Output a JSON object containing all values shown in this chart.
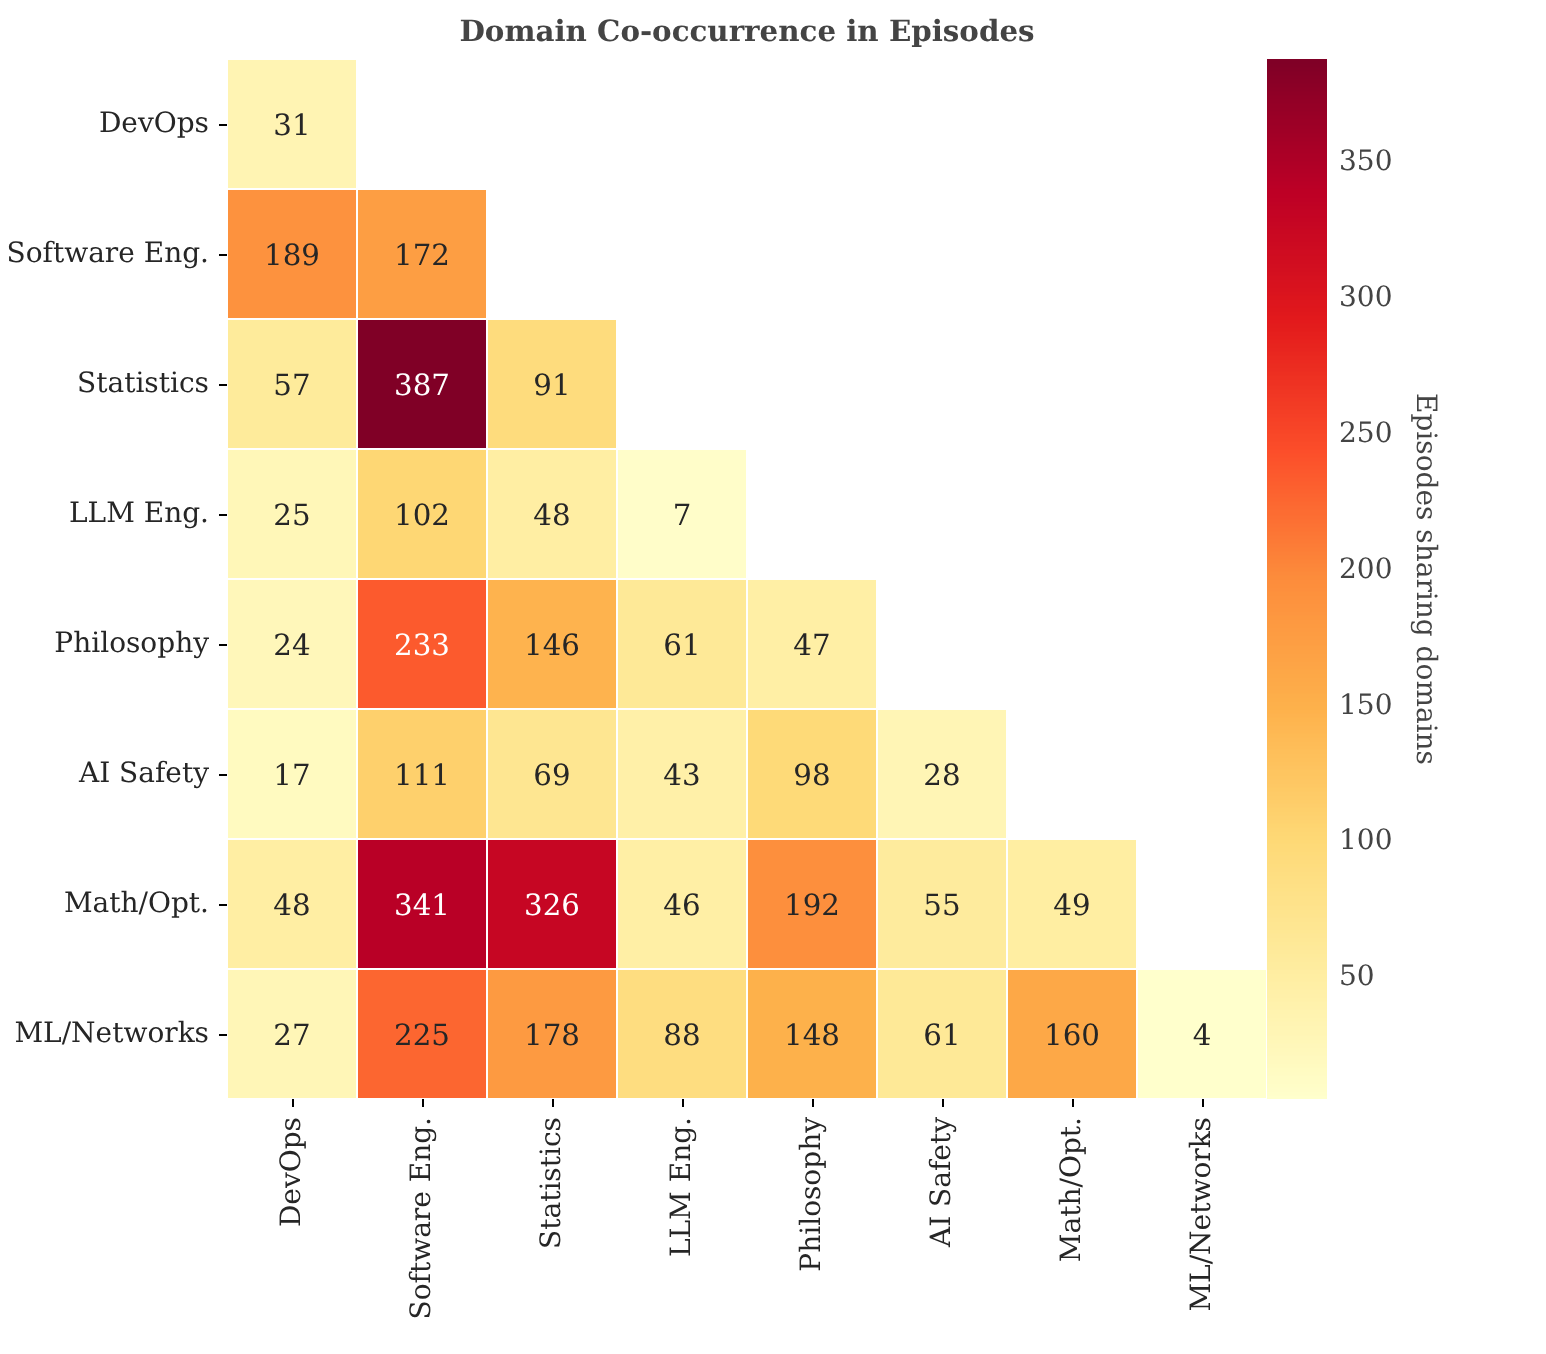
{
  "chart_data": {
    "type": "heatmap",
    "title": "Domain Co-occurrence in Episodes",
    "clabel": "Episodes sharing domains",
    "categories": [
      "DevOps",
      "Software Eng.",
      "Statistics",
      "LLM Eng.",
      "Philosophy",
      "AI Safety",
      "Math/Opt.",
      "ML/Networks"
    ],
    "y_categories": [
      "DevOps",
      "Software Eng.",
      "Statistics",
      "LLM Eng.",
      "Philosophy",
      "AI Safety",
      "Math/Opt.",
      "ML/Networks"
    ],
    "cells": [
      [
        31,
        null,
        null,
        null,
        null,
        null,
        null,
        null
      ],
      [
        189,
        172,
        null,
        null,
        null,
        null,
        null,
        null
      ],
      [
        57,
        387,
        91,
        null,
        null,
        null,
        null,
        null
      ],
      [
        25,
        102,
        48,
        7,
        null,
        null,
        null,
        null
      ],
      [
        24,
        233,
        146,
        61,
        47,
        null,
        null,
        null
      ],
      [
        17,
        111,
        69,
        43,
        98,
        28,
        null,
        null
      ],
      [
        48,
        341,
        326,
        46,
        192,
        55,
        49,
        null
      ],
      [
        27,
        225,
        178,
        88,
        148,
        61,
        160,
        4
      ]
    ],
    "data_labels": true,
    "clim": [
      4,
      387
    ],
    "cticks": [
      50,
      100,
      150,
      200,
      250,
      300,
      350
    ]
  }
}
